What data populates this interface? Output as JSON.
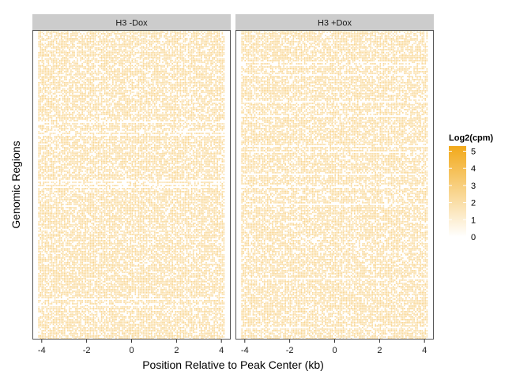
{
  "chart_data": {
    "type": "heatmap",
    "panels": [
      {
        "name": "H3 -Dox",
        "base_level": 2.2,
        "blank_fraction": 0.26
      },
      {
        "name": "H3 +Dox",
        "base_level": 2.2,
        "blank_fraction": 0.27
      }
    ],
    "x_ticks": [
      "-4",
      "-2",
      "0",
      "2",
      "4"
    ],
    "x_tick_values": [
      -4,
      -2,
      0,
      2,
      4
    ],
    "xlim": [
      -4.25,
      4.25
    ],
    "data_xlim": [
      -4,
      4
    ],
    "xlabel": "Position Relative to Peak Center (kb)",
    "ylabel": "Genomic Regions",
    "legend": {
      "title": "Log2(cpm)",
      "labels": [
        "5",
        "4",
        "3",
        "2",
        "1",
        "0"
      ],
      "values": [
        5,
        4,
        3,
        2,
        1,
        0
      ],
      "range": [
        0,
        5.3
      ],
      "color_low": "#ffffff",
      "color_high": "#f2a91a",
      "placement": "right"
    },
    "colors": {
      "strip_fill": "#cccccc",
      "panel_border": "#555555"
    }
  }
}
